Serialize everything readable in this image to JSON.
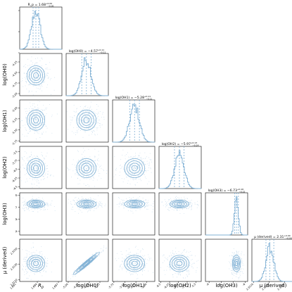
{
  "chart_data": {
    "type": "corner",
    "color": "#7fb0d4",
    "params": [
      {
        "key": "Rp",
        "axis_label": "R_p",
        "title_name": "R_p",
        "title_value": "1.68",
        "title_plus": "+0.00",
        "title_minus": "−0.00",
        "quantiles": [
          1.6834,
          1.6838,
          1.6842
        ],
        "range": [
          1.6815,
          1.6875
        ],
        "ticks": [
          1.681,
          1.684,
          1.687
        ],
        "tick_labels": [
          "1.681",
          "1.684",
          "1.687"
        ],
        "hist_center": 1.6838,
        "hist_sigma": 0.0006
      },
      {
        "key": "logOH0",
        "axis_label": "log(OH0)",
        "title_name": "log(OH0)",
        "title_value": "−4.57",
        "title_plus": "+0.11",
        "title_minus": "−0.11",
        "quantiles": [
          -4.68,
          -4.57,
          -4.46
        ],
        "range": [
          -5.05,
          -4.05
        ],
        "ticks": [
          -5.0,
          -4.75,
          -4.5,
          -4.25
        ],
        "tick_labels": [
          "-5.00",
          "-4.75",
          "-4.50",
          "-4.25"
        ],
        "hist_center": -4.57,
        "hist_sigma": 0.11
      },
      {
        "key": "logOH1",
        "axis_label": "log(OH1)",
        "title_name": "log(OH1)",
        "title_value": "−5.28",
        "title_plus": "+0.11",
        "title_minus": "−0.11",
        "quantiles": [
          -5.39,
          -5.28,
          -5.17
        ],
        "range": [
          -5.78,
          -4.82
        ],
        "ticks": [
          -5.75,
          -5.5,
          -5.25,
          -5.0
        ],
        "tick_labels": [
          "-5.75",
          "-5.50",
          "-5.25",
          "-5.00"
        ],
        "hist_center": -5.28,
        "hist_sigma": 0.11
      },
      {
        "key": "logOH2",
        "axis_label": "log(OH2)",
        "title_name": "log(OH2)",
        "title_value": "−5.97",
        "title_plus": "+0.13",
        "title_minus": "−0.14",
        "quantiles": [
          -6.11,
          -5.97,
          -5.84
        ],
        "range": [
          -6.55,
          -5.35
        ],
        "ticks": [
          -6.5,
          -6.25,
          -6.0,
          -5.75,
          -5.5
        ],
        "tick_labels": [
          "-6.5",
          "-6.25",
          "-6.0",
          "-5.75",
          "-5.5"
        ],
        "hist_center": -5.97,
        "hist_sigma": 0.13
      },
      {
        "key": "logOH3",
        "axis_label": "log(OH3)",
        "title_name": "log(OH3)",
        "title_value": "−6.73",
        "title_plus": "+0.16",
        "title_minus": "−0.15",
        "quantiles": [
          -6.88,
          -6.73,
          -6.57
        ],
        "range": [
          -9.3,
          -5.8
        ],
        "ticks": [
          -9,
          -8,
          -7,
          -6
        ],
        "tick_labels": [
          "-9",
          "-8",
          "-7",
          "-6"
        ],
        "hist_center": -6.73,
        "hist_sigma": 0.16
      },
      {
        "key": "mu",
        "axis_label": "μ (derived)",
        "title_name": "μ (derived)",
        "title_value": "2.31",
        "title_plus": "+0.00",
        "title_minus": "−0.00",
        "quantiles": [
          2.3126,
          2.3131,
          2.3136
        ],
        "range": [
          2.3108,
          2.3162
        ],
        "ticks": [
          2.311,
          2.313,
          2.315
        ],
        "tick_labels": [
          "2.3110",
          "2.3130",
          "2.3150"
        ],
        "hist_center": 2.3131,
        "hist_sigma": 0.0005
      }
    ],
    "correlated_pairs": [
      {
        "x": "logOH0",
        "y": "mu",
        "rho": 0.97
      }
    ]
  }
}
